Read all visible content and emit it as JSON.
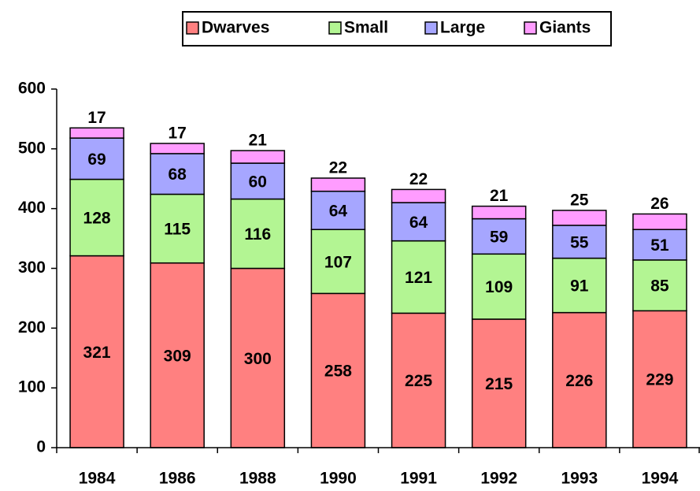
{
  "chart_data": {
    "type": "stacked_bar",
    "categories": [
      "1984",
      "1986",
      "1988",
      "1990",
      "1991",
      "1992",
      "1993",
      "1994"
    ],
    "series": [
      {
        "name": "Dwarves",
        "color": "#ff8080",
        "values": [
          321,
          309,
          300,
          258,
          225,
          215,
          226,
          229
        ]
      },
      {
        "name": "Small",
        "color": "#b3f593",
        "values": [
          128,
          115,
          116,
          107,
          121,
          109,
          91,
          85
        ]
      },
      {
        "name": "Large",
        "color": "#a6a6ff",
        "values": [
          69,
          68,
          60,
          64,
          64,
          59,
          55,
          51
        ]
      },
      {
        "name": "Giants",
        "color": "#ff9cff",
        "values": [
          17,
          17,
          21,
          22,
          22,
          21,
          25,
          26
        ]
      }
    ],
    "ylim": [
      0,
      600
    ],
    "yticks": [
      0,
      100,
      200,
      300,
      400,
      500,
      600
    ],
    "legend": "top"
  }
}
